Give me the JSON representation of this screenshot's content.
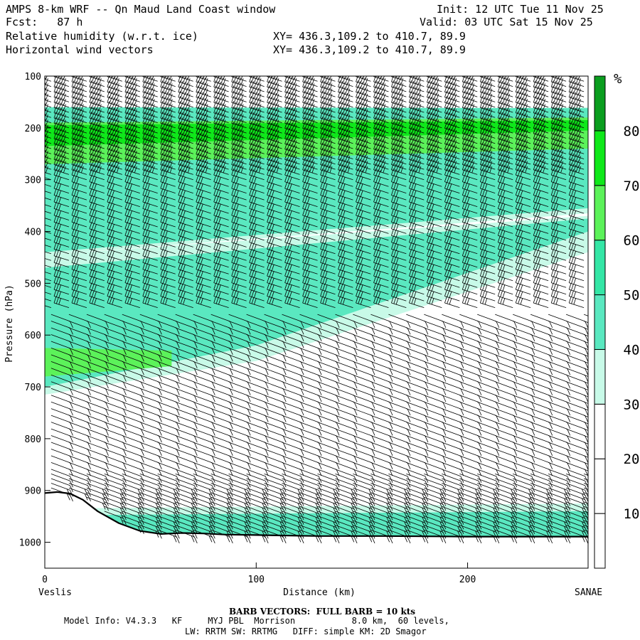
{
  "header": {
    "title": "AMPS 8-km WRF -- Qn Maud Land Coast window",
    "init": "Init: 12 UTC Tue 11 Nov 25",
    "fcst": "Fcst:   87 h",
    "valid": "Valid: 03 UTC Sat 15 Nov 25",
    "field1": "Relative humidity (w.r.t. ice)",
    "field2": "Horizontal wind vectors",
    "xy1": "XY= 436.3,109.2 to 410.7, 89.9",
    "xy2": "XY= 436.3,109.2 to 410.7, 89.9"
  },
  "chart_data": {
    "type": "heatmap",
    "subtype": "vertical cross-section",
    "xlabel": "Distance (km)",
    "ylabel": "Pressure (hPa)",
    "xlim": [
      0,
      257
    ],
    "ylim": [
      100,
      1050
    ],
    "y_axis_inverted": true,
    "x_ticks": [
      "0",
      "100",
      "200"
    ],
    "y_ticks": [
      "100",
      "200",
      "300",
      "400",
      "500",
      "600",
      "700",
      "800",
      "900",
      "1000"
    ],
    "x_end_labels": {
      "left": "Veslis",
      "right": "SANAE"
    },
    "colorbar": {
      "unit": "%",
      "tick_labels": [
        "10",
        "20",
        "30",
        "40",
        "50",
        "60",
        "70",
        "80"
      ],
      "bins": [
        {
          "min": 0,
          "max": 10,
          "color": "#ffffff"
        },
        {
          "min": 10,
          "max": 20,
          "color": "#ffffff"
        },
        {
          "min": 20,
          "max": 30,
          "color": "#ffffff"
        },
        {
          "min": 30,
          "max": 40,
          "color": "#c8fae8"
        },
        {
          "min": 40,
          "max": 50,
          "color": "#5ae8c0"
        },
        {
          "min": 50,
          "max": 60,
          "color": "#34e6a6"
        },
        {
          "min": 60,
          "max": 70,
          "color": "#5cf25a"
        },
        {
          "min": 70,
          "max": 80,
          "color": "#0fe81a"
        },
        {
          "min": 80,
          "max": 90,
          "color": "#0b9e1f"
        }
      ]
    },
    "terrain_pressure": [
      [
        0,
        905
      ],
      [
        6,
        903
      ],
      [
        12,
        906
      ],
      [
        18,
        918
      ],
      [
        25,
        940
      ],
      [
        35,
        963
      ],
      [
        45,
        978
      ],
      [
        55,
        984
      ],
      [
        65,
        982
      ],
      [
        75,
        983
      ],
      [
        85,
        985
      ],
      [
        100,
        986
      ],
      [
        130,
        988
      ],
      [
        160,
        988
      ],
      [
        200,
        989
      ],
      [
        257,
        989
      ]
    ],
    "rh_layers": [
      {
        "rh": 35,
        "top": [
          [
            0,
            170
          ],
          [
            257,
            160
          ]
        ],
        "bottom": [
          [
            0,
            445
          ],
          [
            257,
            365
          ]
        ]
      },
      {
        "rh": 45,
        "top": [
          [
            0,
            160
          ],
          [
            257,
            162
          ]
        ],
        "bottom": [
          [
            0,
            440
          ],
          [
            257,
            355
          ]
        ]
      },
      {
        "rh": 65,
        "top": [
          [
            0,
            190
          ],
          [
            257,
            180
          ]
        ],
        "bottom": [
          [
            0,
            270
          ],
          [
            257,
            240
          ]
        ]
      },
      {
        "rh": 75,
        "top": [
          [
            0,
            195
          ],
          [
            257,
            185
          ]
        ],
        "bottom": [
          [
            0,
            235
          ],
          [
            257,
            205
          ]
        ]
      },
      {
        "rh": 35,
        "top": [
          [
            0,
            445
          ],
          [
            257,
            370
          ]
        ],
        "bottom": [
          [
            0,
            715
          ],
          [
            100,
            650
          ],
          [
            257,
            440
          ]
        ]
      },
      {
        "rh": 45,
        "top": [
          [
            0,
            470
          ],
          [
            257,
            375
          ]
        ],
        "bottom": [
          [
            0,
            700
          ],
          [
            100,
            620
          ],
          [
            257,
            400
          ]
        ]
      },
      {
        "rh": 60,
        "top": [
          [
            0,
            625
          ],
          [
            60,
            630
          ]
        ],
        "bottom": [
          [
            0,
            680
          ],
          [
            60,
            660
          ]
        ]
      },
      {
        "rh": 35,
        "top": [
          [
            0,
            935
          ],
          [
            257,
            925
          ]
        ],
        "bottom": [
          [
            0,
            988
          ],
          [
            257,
            988
          ]
        ]
      },
      {
        "rh": 45,
        "top": [
          [
            0,
            948
          ],
          [
            257,
            940
          ]
        ],
        "bottom": [
          [
            0,
            988
          ],
          [
            257,
            988
          ]
        ]
      }
    ],
    "wind_barbs": {
      "full_barb_kts": 10,
      "note": "profiles at ~8.4 km spacing, upper levels westerly ~40-60 kt, lower levels easterly ~15-30 kt"
    }
  },
  "footer": {
    "barb_note": "BARB VECTORS:  FULL BARB = 10 kts",
    "model_info": "Model Info: V4.3.3   KF     MYJ PBL  Morrison           8.0 km,  60 levels,",
    "physics": "LW: RRTM SW: RRTMG   DIFF: simple KM: 2D Smagor"
  },
  "colors": {
    "axis": "#000000",
    "terrain": "#000000"
  }
}
